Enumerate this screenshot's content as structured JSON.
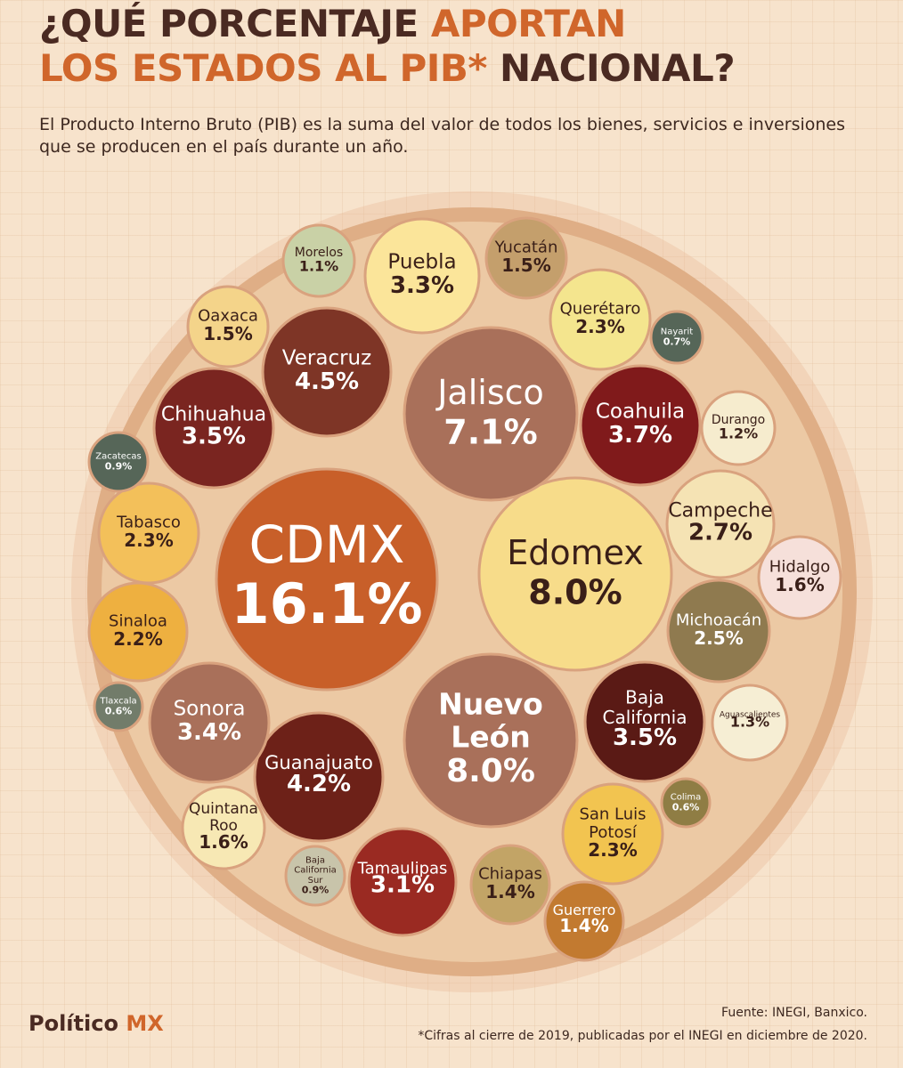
{
  "header": {
    "title_line1_dark": "¿QUÉ PORCENTAJE",
    "title_line1_orange": "APORTAN",
    "title_line2_orange": "LOS ESTADOS AL PIB*",
    "title_line2_dark": "NACIONAL?",
    "subtitle": "El Producto Interno Bruto (PIB) es la suma del valor de todos los bienes, servicios e inversiones que se producen en el país durante un año."
  },
  "chart_data": {
    "type": "bubble",
    "unit": "%",
    "points": [
      {
        "label": "CDMX",
        "value": 16.1,
        "color": "#c85f29"
      },
      {
        "label": "Edomex",
        "value": 8.0,
        "color": "#f7dc8a"
      },
      {
        "label": "Nuevo León",
        "value": 8.0,
        "color": "#a9705a"
      },
      {
        "label": "Jalisco",
        "value": 7.1,
        "color": "#a9705a"
      },
      {
        "label": "Veracruz",
        "value": 4.5,
        "color": "#7e3526"
      },
      {
        "label": "Guanajuato",
        "value": 4.2,
        "color": "#6d2118"
      },
      {
        "label": "Coahuila",
        "value": 3.7,
        "color": "#801a1b"
      },
      {
        "label": "Chihuahua",
        "value": 3.5,
        "color": "#7a2520"
      },
      {
        "label": "Baja California",
        "value": 3.5,
        "color": "#5a1a15"
      },
      {
        "label": "Sonora",
        "value": 3.4,
        "color": "#a9705a"
      },
      {
        "label": "Puebla",
        "value": 3.3,
        "color": "#fbe59a"
      },
      {
        "label": "Tamaulipas",
        "value": 3.1,
        "color": "#9a2a22"
      },
      {
        "label": "Campeche",
        "value": 2.7,
        "color": "#f5e3b4"
      },
      {
        "label": "Michoacán",
        "value": 2.5,
        "color": "#8f7a4f"
      },
      {
        "label": "Querétaro",
        "value": 2.3,
        "color": "#f4e58e"
      },
      {
        "label": "Tabasco",
        "value": 2.3,
        "color": "#f3c05a"
      },
      {
        "label": "San Luis Potosí",
        "value": 2.3,
        "color": "#f2c450"
      },
      {
        "label": "Sinaloa",
        "value": 2.2,
        "color": "#eeb040"
      },
      {
        "label": "Hidalgo",
        "value": 1.6,
        "color": "#f6e0da"
      },
      {
        "label": "Quintana Roo",
        "value": 1.6,
        "color": "#f7e8b4"
      },
      {
        "label": "Yucatán",
        "value": 1.5,
        "color": "#c49f6c"
      },
      {
        "label": "Oaxaca",
        "value": 1.5,
        "color": "#f4d48a"
      },
      {
        "label": "Chiapas",
        "value": 1.4,
        "color": "#c2a466"
      },
      {
        "label": "Guerrero",
        "value": 1.4,
        "color": "#c27a30"
      },
      {
        "label": "Aguascalientes",
        "value": 1.3,
        "color": "#f6eed4"
      },
      {
        "label": "Durango",
        "value": 1.2,
        "color": "#f6ecce"
      },
      {
        "label": "Morelos",
        "value": 1.1,
        "color": "#c9d1a6"
      },
      {
        "label": "Zacatecas",
        "value": 0.9,
        "color": "#566658"
      },
      {
        "label": "Baja California Sur",
        "value": 0.9,
        "color": "#c8c4aa"
      },
      {
        "label": "Nayarit",
        "value": 0.7,
        "color": "#566658"
      },
      {
        "label": "Tlaxcala",
        "value": 0.6,
        "color": "#727c6a"
      },
      {
        "label": "Colima",
        "value": 0.6,
        "color": "#8f7d44"
      }
    ]
  },
  "footer": {
    "logo_part1": "Político",
    "logo_part2": "MX",
    "source": "Fuente: INEGI, Banxico.",
    "note": "*Cifras al cierre de 2019, publicadas por el INEGI en diciembre de 2020."
  }
}
